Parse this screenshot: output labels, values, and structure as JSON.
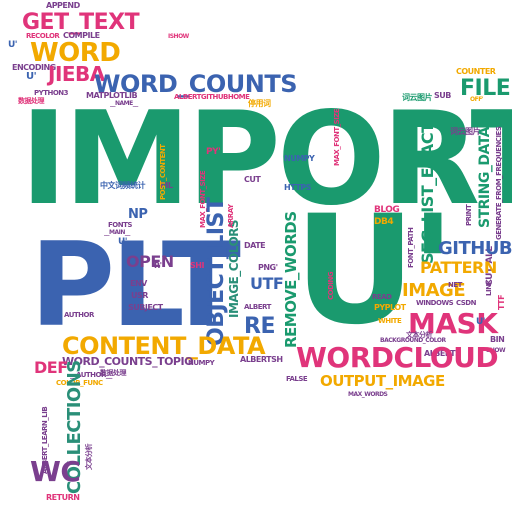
{
  "words": {
    "import": "IMPORT",
    "plt": "PLT",
    "u_big": "U'",
    "wordcloud": "WORDCLOUD",
    "content_data": "CONTENT_DATA",
    "word_counts": "WORD_COUNTS",
    "get_text": "GET_TEXT",
    "word": "WORD",
    "jieba": "JIEBA",
    "file": "FILE",
    "mask": "MASK",
    "object_list": "OBJECT_LIST",
    "remove_words": "REMOVE_WORDS",
    "seg_list_exact": "SEG_LIST_EXACT",
    "string_data": "STRING_DATA",
    "github": "GITHUB",
    "pattern": "PATTERN",
    "image": "IMAGE",
    "output_image": "OUTPUT_IMAGE",
    "collections": "COLLECTIONS",
    "wc": "WC",
    "def": "DEF",
    "re": "RE",
    "utf": "UTF",
    "open": "OPEN",
    "np": "NP",
    "image_colors": "IMAGE_COLORS",
    "cut_all": "CUT_ALL",
    "append": "APPEND",
    "recolor": "RECOLOR",
    "compile": "COMPILE",
    "encoding": "ENCODING",
    "python3": "PYTHON3",
    "matplotlib": "MATPLOTLIB",
    "counter": "COUNTER",
    "sub": "SUB",
    "return": "RETURN",
    "author": "AUTHOR",
    "subject": "SUBJECT",
    "usr": "USR",
    "env": "ENV",
    "numpy": "NUMPY",
    "https": "HTTPS",
    "blog": "BLOG",
    "db4": "DB4",
    "coding": "CODING",
    "read": "READ",
    "pyplot": "PYPLOT",
    "white": "WHITE",
    "windows": "WINDOWS",
    "csdn": "CSDN",
    "net": "NET",
    "background_color": "BACKGROUND_COLOR",
    "false": "FALSE",
    "max_words": "MAX_WORDS",
    "font_path": "FONT_PATH",
    "print": "PRINT",
    "link": "LINK",
    "ttf": "TTF",
    "bin": "BIN",
    "show": "SHOW",
    "albertsh": "ALBERTSH",
    "alberts": "ALBERTS",
    "albert": "ALBERT",
    "word_counts_topio": "WORD_COUNTS_TOPIO",
    "color_func": "COLOR_FUNC",
    "albert_learn_lib": "ALBERT_LEARN_LIB",
    "author2": "__AUTHOR__",
    "date": "DATE",
    "png": "PNG'",
    "cut": "CUT",
    "pil": "PIL",
    "py": "PY'",
    "shi": "SHI",
    "fonts": "FONTS",
    "main": "__MAIN__",
    "albertgithubhome": "ALBERTGITHUBHOME",
    "name": "__NAME__",
    "post_content": "POST_CONTENT",
    "generate_from_frequencies": "GENERATE_FROM_FREQUENCIES",
    "max_font_size": "MAX_FONT_SIZE",
    "array": "ARRAY",
    "off": "OFF'",
    "ishow": "ISHOW",
    "u_small": "U'",
    "r_small": "R'",
    "cjk1": "中文词频统计",
    "cjk2": "词云图片",
    "cjk3": "文本分析",
    "cjk4": "停用词",
    "cjk5": "数据处理"
  }
}
